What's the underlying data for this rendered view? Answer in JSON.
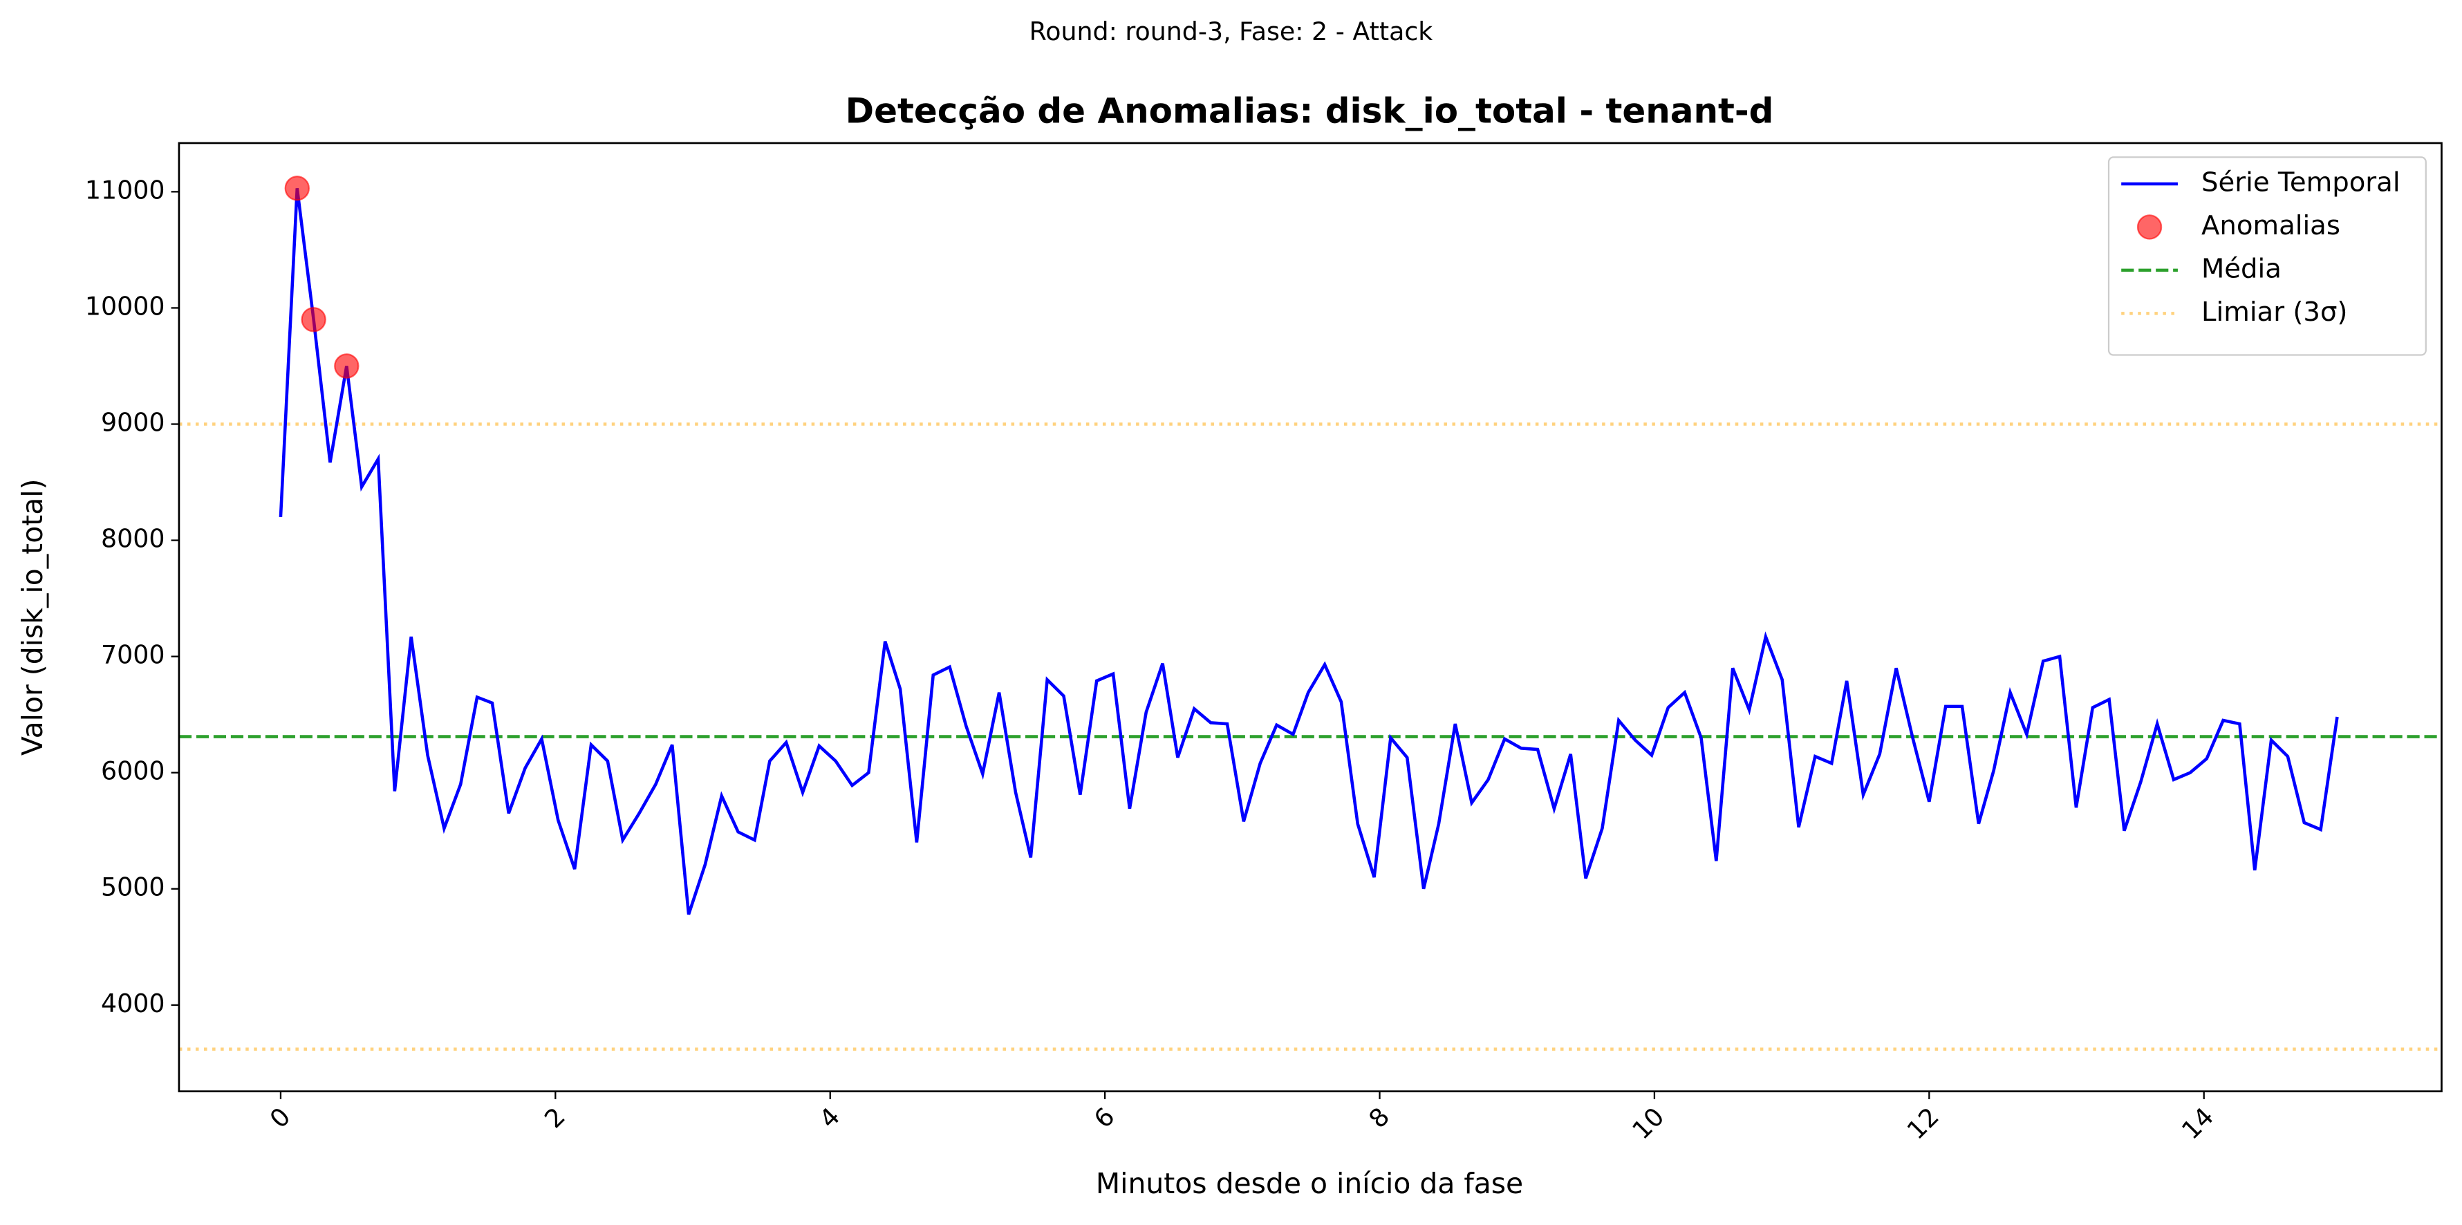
{
  "chart_data": {
    "type": "line",
    "suptitle": "Round: round-3, Fase: 2 - Attack",
    "title": "Detecção de Anomalias: disk_io_total - tenant-d",
    "xlabel": "Minutos desde o início da fase",
    "ylabel": "Valor (disk_io_total)",
    "x": [
      0,
      0.12,
      0.24,
      0.36,
      0.48,
      0.59,
      0.71,
      0.83,
      0.95,
      1.07,
      1.19,
      1.31,
      1.43,
      1.54,
      1.66,
      1.78,
      1.9,
      2.02,
      2.14,
      2.26,
      2.38,
      2.49,
      2.61,
      2.73,
      2.85,
      2.97,
      3.09,
      3.21,
      3.33,
      3.45,
      3.56,
      3.68,
      3.8,
      3.92,
      4.04,
      4.16,
      4.28,
      4.4,
      4.51,
      4.63,
      4.75,
      4.87,
      4.99,
      5.11,
      5.23,
      5.35,
      5.46,
      5.58,
      5.7,
      5.82,
      5.94,
      6.06,
      6.18,
      6.3,
      6.42,
      6.53,
      6.65,
      6.77,
      6.89,
      7.01,
      7.13,
      7.25,
      7.37,
      7.48,
      7.6,
      7.72,
      7.84,
      7.96,
      8.08,
      8.2,
      8.32,
      8.43,
      8.55,
      8.67,
      8.79,
      8.91,
      9.03,
      9.15,
      9.27,
      9.39,
      9.5,
      9.62,
      9.74,
      9.86,
      9.98,
      10.1,
      10.22,
      10.34,
      10.45,
      10.57,
      10.69,
      10.81,
      10.93,
      11.05,
      11.17,
      11.29,
      11.4,
      11.52,
      11.64,
      11.76,
      11.88,
      12,
      12.12,
      12.24,
      12.36,
      12.47,
      12.59,
      12.71,
      12.83,
      12.95,
      13.07,
      13.19,
      13.31,
      13.42,
      13.54,
      13.66,
      13.78,
      13.9,
      14.02,
      14.14,
      14.26,
      14.37,
      14.49,
      14.61,
      14.73,
      14.85,
      14.97
    ],
    "series": [
      {
        "name": "Série Temporal",
        "color": "#0000ff",
        "values": [
          8200,
          11030,
          9900,
          8670,
          9500,
          8460,
          8700,
          5840,
          7170,
          6150,
          5520,
          5900,
          6650,
          6600,
          5650,
          6040,
          6290,
          5590,
          5170,
          6240,
          6100,
          5420,
          5650,
          5900,
          6240,
          4780,
          5210,
          5800,
          5490,
          5420,
          6100,
          6260,
          5830,
          6230,
          6100,
          5890,
          6000,
          7130,
          6720,
          5400,
          6840,
          6910,
          6400,
          5990,
          6690,
          5830,
          5270,
          6800,
          6660,
          5810,
          6790,
          6850,
          5690,
          6520,
          6940,
          6130,
          6550,
          6430,
          6420,
          5580,
          6080,
          6410,
          6330,
          6690,
          6930,
          6610,
          5560,
          5100,
          6300,
          6130,
          5000,
          5560,
          6420,
          5740,
          5940,
          6290,
          6210,
          6200,
          5690,
          6160,
          5090,
          5520,
          6450,
          6280,
          6150,
          6560,
          6690,
          6300,
          5240,
          6900,
          6540,
          7170,
          6800,
          5530,
          6140,
          6080,
          6790,
          5810,
          6160,
          6900,
          6300,
          5750,
          6570,
          6570,
          5560,
          6020,
          6690,
          6330,
          6960,
          7000,
          5700,
          6560,
          6630,
          5500,
          5920,
          6420,
          5940,
          6000,
          6120,
          6450,
          6420,
          5160,
          6280,
          6140,
          5570,
          5510,
          6480
        ]
      }
    ],
    "anomalies": {
      "name": "Anomalias",
      "color": "#ff0000",
      "x": [
        0.12,
        0.24,
        0.48
      ],
      "values": [
        11030,
        9900,
        9500
      ]
    },
    "hlines": [
      {
        "name": "Média",
        "color": "#2ca02c",
        "dash": "dashed",
        "values": [
          6310
        ]
      },
      {
        "name": "Limiar (3σ)",
        "color": "#ffd27f",
        "dash": "dotted",
        "values": [
          9000,
          3620
        ]
      }
    ],
    "xlim": [
      -0.74,
      15.73
    ],
    "ylim": [
      3257,
      11419
    ],
    "xticks": [
      0,
      2,
      4,
      6,
      8,
      10,
      12,
      14
    ],
    "yticks": [
      4000,
      5000,
      6000,
      7000,
      8000,
      9000,
      10000,
      11000
    ],
    "legend": "upper right"
  }
}
